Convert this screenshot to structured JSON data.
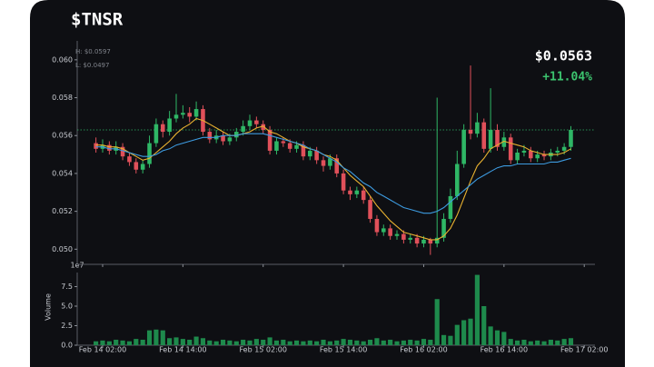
{
  "header": {
    "title": "$TNSR",
    "high": "H: $0.0597",
    "low": "L: $0.0497",
    "price": "$0.0563",
    "change": "+11.04%"
  },
  "chart_data": [
    {
      "type": "candlestick",
      "up_color": "#2fb766",
      "down_color": "#e0505a",
      "price_line": 0.0563,
      "xlim": [
        -2.8,
        74.6
      ],
      "ylim": [
        0.0492,
        0.061
      ],
      "yticks": [
        {
          "value": 0.05,
          "label": "0.050"
        },
        {
          "value": 0.052,
          "label": "0.052"
        },
        {
          "value": 0.054,
          "label": "0.054"
        },
        {
          "value": 0.056,
          "label": "0.056"
        },
        {
          "value": 0.058,
          "label": "0.058"
        },
        {
          "value": 0.06,
          "label": "0.060"
        }
      ],
      "xticks": [
        {
          "value": 1,
          "label": "Feb 14 02:00"
        },
        {
          "value": 13,
          "label": "Feb 14 14:00"
        },
        {
          "value": 25,
          "label": "Feb 15 02:00"
        },
        {
          "value": 37,
          "label": "Feb 15 14:00"
        },
        {
          "value": 49,
          "label": "Feb 16 02:00"
        },
        {
          "value": 61,
          "label": "Feb 16 14:00"
        },
        {
          "value": 73,
          "label": "Feb 17 02:00"
        }
      ],
      "open": [
        0.0556,
        0.0553,
        0.0555,
        0.0552,
        0.0554,
        0.0549,
        0.0546,
        0.0542,
        0.0545,
        0.0556,
        0.0566,
        0.0562,
        0.0569,
        0.0571,
        0.0572,
        0.057,
        0.0574,
        0.0562,
        0.0558,
        0.056,
        0.0557,
        0.0559,
        0.0562,
        0.0565,
        0.0568,
        0.0566,
        0.0563,
        0.0552,
        0.0557,
        0.0556,
        0.0553,
        0.0555,
        0.0549,
        0.0552,
        0.0547,
        0.0544,
        0.0548,
        0.054,
        0.0531,
        0.0529,
        0.0531,
        0.0526,
        0.0516,
        0.0509,
        0.0511,
        0.0507,
        0.0508,
        0.0505,
        0.0506,
        0.0503,
        0.0505,
        0.0503,
        0.0506,
        0.0516,
        0.0528,
        0.0545,
        0.0563,
        0.0561,
        0.0567,
        0.0553,
        0.0563,
        0.0554,
        0.0559,
        0.0547,
        0.0551,
        0.0552,
        0.0548,
        0.055,
        0.0549,
        0.0551,
        0.0552,
        0.0554
      ],
      "high": [
        0.0559,
        0.0558,
        0.0557,
        0.0557,
        0.0556,
        0.0551,
        0.0548,
        0.0547,
        0.056,
        0.0569,
        0.0568,
        0.0573,
        0.0582,
        0.0576,
        0.0575,
        0.0578,
        0.0576,
        0.0564,
        0.0563,
        0.0562,
        0.0561,
        0.0564,
        0.0568,
        0.0571,
        0.057,
        0.0568,
        0.0565,
        0.0559,
        0.0559,
        0.0558,
        0.0557,
        0.0557,
        0.0554,
        0.0554,
        0.0549,
        0.055,
        0.055,
        0.0542,
        0.0533,
        0.0533,
        0.0533,
        0.0528,
        0.0518,
        0.0513,
        0.0513,
        0.051,
        0.051,
        0.0508,
        0.0508,
        0.0507,
        0.0506,
        0.058,
        0.0519,
        0.0532,
        0.0552,
        0.0566,
        0.0597,
        0.0572,
        0.0569,
        0.0585,
        0.0566,
        0.0562,
        0.0561,
        0.0553,
        0.0555,
        0.0554,
        0.0552,
        0.0552,
        0.0553,
        0.0554,
        0.0556,
        0.0565
      ],
      "low": [
        0.0551,
        0.0551,
        0.055,
        0.055,
        0.0547,
        0.0544,
        0.054,
        0.054,
        0.0543,
        0.0554,
        0.0559,
        0.056,
        0.0567,
        0.0569,
        0.0567,
        0.0568,
        0.056,
        0.0556,
        0.0556,
        0.0555,
        0.0555,
        0.0557,
        0.056,
        0.0563,
        0.0564,
        0.0561,
        0.055,
        0.055,
        0.0554,
        0.0551,
        0.0551,
        0.0547,
        0.0547,
        0.0545,
        0.0541,
        0.0542,
        0.0538,
        0.0529,
        0.0526,
        0.0527,
        0.0524,
        0.0514,
        0.0507,
        0.0507,
        0.0505,
        0.0505,
        0.0503,
        0.0503,
        0.0501,
        0.0501,
        0.0497,
        0.0501,
        0.0504,
        0.0514,
        0.0526,
        0.0543,
        0.0558,
        0.0559,
        0.0551,
        0.0551,
        0.0552,
        0.0552,
        0.0545,
        0.0545,
        0.0549,
        0.0546,
        0.0546,
        0.0547,
        0.0547,
        0.0549,
        0.055,
        0.0552
      ],
      "close": [
        0.0553,
        0.0555,
        0.0552,
        0.0554,
        0.0549,
        0.0546,
        0.0542,
        0.0545,
        0.0556,
        0.0566,
        0.0562,
        0.0569,
        0.0571,
        0.0572,
        0.057,
        0.0574,
        0.0562,
        0.0558,
        0.056,
        0.0557,
        0.0559,
        0.0562,
        0.0565,
        0.0568,
        0.0566,
        0.0563,
        0.0552,
        0.0557,
        0.0556,
        0.0553,
        0.0555,
        0.0549,
        0.0552,
        0.0547,
        0.0544,
        0.0548,
        0.054,
        0.0531,
        0.0529,
        0.0531,
        0.0526,
        0.0516,
        0.0509,
        0.0511,
        0.0507,
        0.0508,
        0.0505,
        0.0506,
        0.0503,
        0.0505,
        0.0503,
        0.0506,
        0.0516,
        0.0528,
        0.0545,
        0.0563,
        0.0561,
        0.0567,
        0.0553,
        0.0563,
        0.0554,
        0.0559,
        0.0547,
        0.0551,
        0.0552,
        0.0548,
        0.055,
        0.0549,
        0.0551,
        0.0552,
        0.0554,
        0.0563
      ],
      "series": [
        {
          "color": "#e8b130",
          "values": [
            0.0555,
            0.0555,
            0.0554,
            0.0554,
            0.0553,
            0.0551,
            0.0549,
            0.0547,
            0.0548,
            0.0551,
            0.0554,
            0.0557,
            0.0561,
            0.0564,
            0.0566,
            0.0569,
            0.0568,
            0.0566,
            0.0564,
            0.0562,
            0.056,
            0.056,
            0.0561,
            0.0562,
            0.0564,
            0.0565,
            0.0562,
            0.0561,
            0.0559,
            0.0557,
            0.0556,
            0.0554,
            0.0553,
            0.0552,
            0.055,
            0.0549,
            0.0547,
            0.0543,
            0.0539,
            0.0536,
            0.0533,
            0.0528,
            0.0523,
            0.0519,
            0.0515,
            0.0512,
            0.0509,
            0.0508,
            0.0507,
            0.0506,
            0.0505,
            0.0505,
            0.0507,
            0.0511,
            0.0518,
            0.0527,
            0.0536,
            0.0544,
            0.0548,
            0.0553,
            0.0555,
            0.0557,
            0.0556,
            0.0555,
            0.0554,
            0.0552,
            0.0551,
            0.055,
            0.055,
            0.055,
            0.0551,
            0.0553
          ]
        },
        {
          "color": "#3d9be0",
          "values": [
            0.0554,
            0.0554,
            0.0553,
            0.0553,
            0.0552,
            0.0551,
            0.055,
            0.0549,
            0.0549,
            0.055,
            0.0552,
            0.0553,
            0.0555,
            0.0556,
            0.0557,
            0.0558,
            0.0559,
            0.0559,
            0.0559,
            0.056,
            0.056,
            0.056,
            0.0561,
            0.0561,
            0.0561,
            0.0561,
            0.056,
            0.0559,
            0.0558,
            0.0557,
            0.0556,
            0.0555,
            0.0553,
            0.0552,
            0.055,
            0.0548,
            0.0546,
            0.0543,
            0.0541,
            0.0538,
            0.0535,
            0.0533,
            0.053,
            0.0528,
            0.0526,
            0.0524,
            0.0522,
            0.0521,
            0.052,
            0.0519,
            0.0519,
            0.052,
            0.0522,
            0.0525,
            0.0528,
            0.0531,
            0.0534,
            0.0537,
            0.0539,
            0.0541,
            0.0543,
            0.0544,
            0.0544,
            0.0545,
            0.0545,
            0.0545,
            0.0545,
            0.0545,
            0.0546,
            0.0546,
            0.0547,
            0.0548
          ]
        }
      ]
    },
    {
      "type": "bar",
      "y_label": "Volume",
      "scale_label": "1e7",
      "color": "#1e8a4c",
      "xlim": [
        -2.8,
        74.6
      ],
      "ylim": [
        0,
        9.3
      ],
      "yticks": [
        {
          "value": 0,
          "label": "0.0"
        },
        {
          "value": 2.5,
          "label": "2.5"
        },
        {
          "value": 5,
          "label": "5.0"
        },
        {
          "value": 7.5,
          "label": "7.5"
        }
      ],
      "values": [
        0.5,
        0.6,
        0.5,
        0.7,
        0.6,
        0.5,
        0.8,
        0.7,
        1.9,
        2.0,
        1.9,
        0.9,
        1.0,
        0.8,
        0.7,
        1.1,
        0.9,
        0.6,
        0.5,
        0.7,
        0.6,
        0.5,
        0.7,
        0.6,
        0.8,
        0.7,
        1.0,
        0.6,
        0.7,
        0.5,
        0.6,
        0.5,
        0.6,
        0.5,
        0.7,
        0.5,
        0.6,
        0.8,
        0.7,
        0.6,
        0.5,
        0.7,
        0.9,
        0.6,
        0.7,
        0.5,
        0.6,
        0.7,
        0.6,
        0.8,
        0.7,
        5.9,
        1.3,
        1.2,
        2.6,
        3.2,
        3.4,
        9.0,
        5.0,
        2.4,
        1.9,
        1.7,
        0.8,
        0.6,
        0.7,
        0.5,
        0.6,
        0.5,
        0.7,
        0.6,
        0.8,
        0.9
      ]
    }
  ]
}
